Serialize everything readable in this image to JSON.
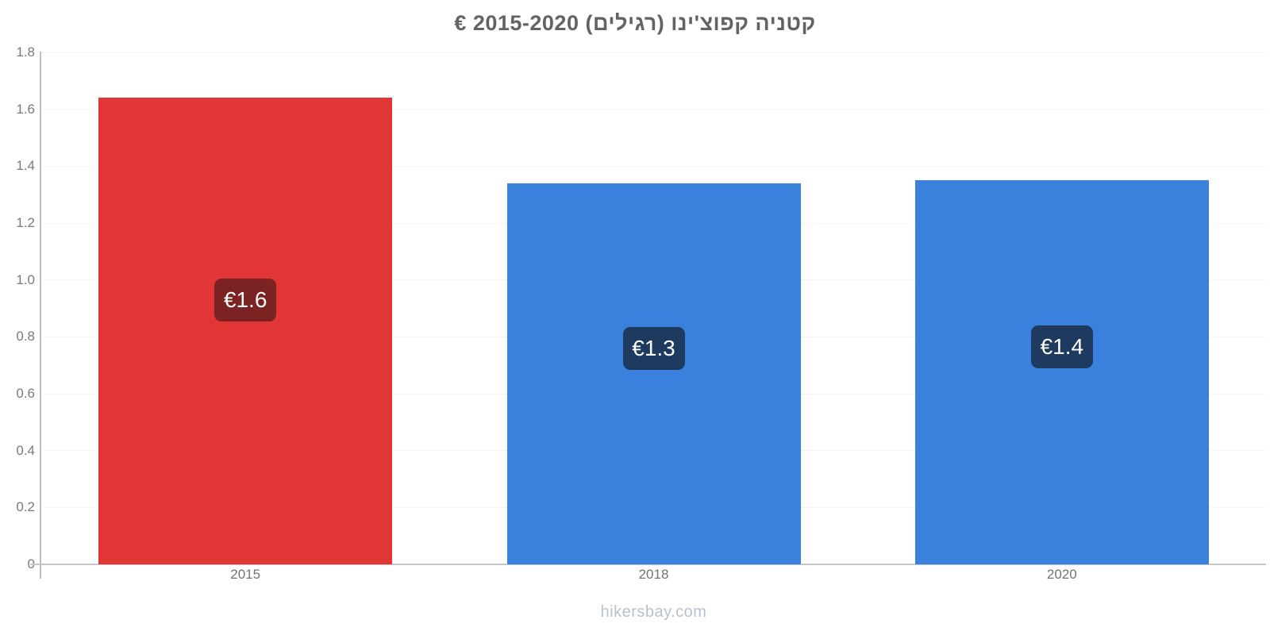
{
  "header": {
    "title": "קטניה קפוצ'ינו (רגילים) 2015-2020 €"
  },
  "footer": {
    "watermark": "hikersbay.com"
  },
  "chart_data": {
    "type": "bar",
    "title": "קטניה קפוצ'ינו (רגילים) 2015-2020 €",
    "categories": [
      "2015",
      "2018",
      "2020"
    ],
    "values": [
      1.64,
      1.34,
      1.35
    ],
    "value_labels": [
      "€1.6",
      "€1.3",
      "€1.4"
    ],
    "bar_colors": [
      "#e23535",
      "#3a80dd",
      "#3a80dd"
    ],
    "value_label_bg": [
      "#7b2222",
      "#1e3a5f",
      "#1e3a5f"
    ],
    "currency": "€",
    "xlabel": "",
    "ylabel": "",
    "ylim": [
      0,
      1.8
    ],
    "yticks": [
      0,
      0.2,
      0.4,
      0.6,
      0.8,
      1.0,
      1.2,
      1.4,
      1.6,
      1.8
    ],
    "ytick_labels": [
      "0",
      "0.2",
      "0.4",
      "0.6",
      "0.8",
      "1.0",
      "1.2",
      "1.4",
      "1.6",
      "1.8"
    ],
    "grid": true,
    "legend": false
  },
  "colors": {
    "bar_red": "#e23535",
    "bar_blue": "#3a80dd",
    "label_bg_red": "#7b2222",
    "label_bg_blue": "#1e3a5f",
    "axis": "#c6c6c6",
    "gridline": "#f5f5f5",
    "title_text": "#636363",
    "tick_text": "#7a7a7a",
    "watermark_text": "#b9c0cd"
  }
}
